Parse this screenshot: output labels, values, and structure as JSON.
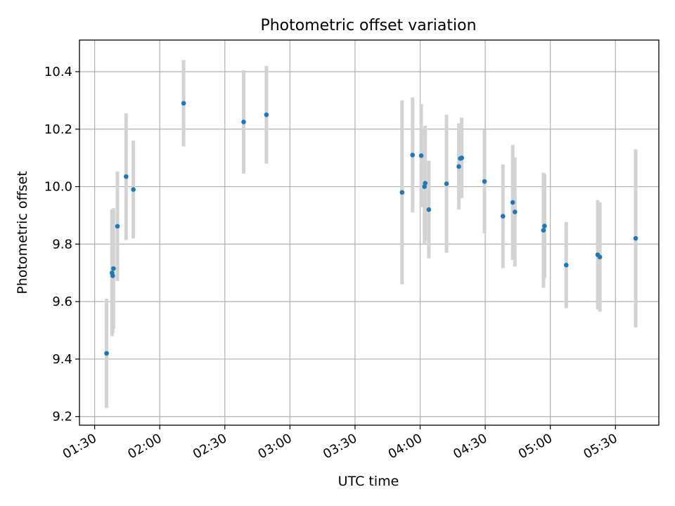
{
  "chart_data": {
    "type": "scatter",
    "title": "Photometric offset variation",
    "xlabel": "UTC time",
    "ylabel": "Photometric offset",
    "xlim": [
      "01:23",
      "05:50"
    ],
    "ylim": [
      9.17,
      10.51
    ],
    "grid": true,
    "x_ticks": [
      "01:30",
      "02:00",
      "02:30",
      "03:00",
      "03:30",
      "04:00",
      "04:30",
      "05:00",
      "05:30"
    ],
    "y_ticks": [
      9.2,
      9.4,
      9.6,
      9.8,
      10.0,
      10.2,
      10.4
    ],
    "colors": {
      "point": "#1f77b4",
      "errorbar": "#d3d3d3"
    },
    "points": [
      {
        "x": "01:35:30",
        "y": 9.42,
        "err": 0.19
      },
      {
        "x": "01:38:00",
        "y": 9.7,
        "err": 0.22
      },
      {
        "x": "01:38:20",
        "y": 9.69,
        "err": 0.2
      },
      {
        "x": "01:38:40",
        "y": 9.715,
        "err": 0.21
      },
      {
        "x": "01:40:30",
        "y": 9.862,
        "err": 0.19
      },
      {
        "x": "01:44:30",
        "y": 10.035,
        "err": 0.22
      },
      {
        "x": "01:47:50",
        "y": 9.99,
        "err": 0.17
      },
      {
        "x": "02:11:00",
        "y": 10.29,
        "err": 0.15
      },
      {
        "x": "02:38:40",
        "y": 10.225,
        "err": 0.18
      },
      {
        "x": "02:49:10",
        "y": 10.25,
        "err": 0.17
      },
      {
        "x": "03:51:40",
        "y": 9.98,
        "err": 0.32
      },
      {
        "x": "03:56:30",
        "y": 10.11,
        "err": 0.2
      },
      {
        "x": "04:00:30",
        "y": 10.108,
        "err": 0.18
      },
      {
        "x": "04:02:00",
        "y": 10.0,
        "err": 0.2
      },
      {
        "x": "04:02:20",
        "y": 10.012,
        "err": 0.2
      },
      {
        "x": "04:04:00",
        "y": 9.92,
        "err": 0.17
      },
      {
        "x": "04:12:10",
        "y": 10.01,
        "err": 0.24
      },
      {
        "x": "04:17:50",
        "y": 10.07,
        "err": 0.15
      },
      {
        "x": "04:18:30",
        "y": 10.098,
        "err": 0.12
      },
      {
        "x": "04:19:10",
        "y": 10.1,
        "err": 0.14
      },
      {
        "x": "04:29:40",
        "y": 10.018,
        "err": 0.18
      },
      {
        "x": "04:38:10",
        "y": 9.897,
        "err": 0.18
      },
      {
        "x": "04:42:40",
        "y": 9.945,
        "err": 0.2
      },
      {
        "x": "04:43:40",
        "y": 9.912,
        "err": 0.19
      },
      {
        "x": "04:56:50",
        "y": 9.848,
        "err": 0.2
      },
      {
        "x": "04:57:20",
        "y": 9.863,
        "err": 0.18
      },
      {
        "x": "05:07:20",
        "y": 9.727,
        "err": 0.15
      },
      {
        "x": "05:21:50",
        "y": 9.763,
        "err": 0.19
      },
      {
        "x": "05:22:50",
        "y": 9.755,
        "err": 0.19
      },
      {
        "x": "05:39:20",
        "y": 9.82,
        "err": 0.31
      }
    ]
  }
}
